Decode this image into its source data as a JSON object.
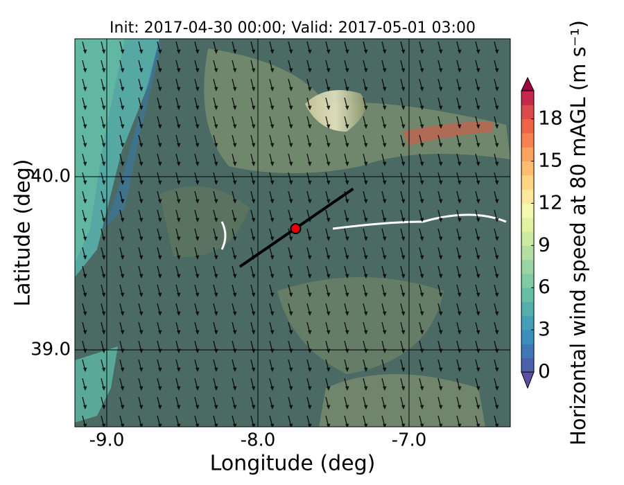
{
  "chart_data": {
    "type": "map",
    "title": "Init: 2017-04-30 00:00; Valid: 2017-05-01 03:00",
    "x_label": "Longitude (deg)",
    "y_label": "Latitude (deg)",
    "xlim": [
      -9.211,
      -6.33
    ],
    "ylim": [
      38.556,
      40.796
    ],
    "xticks": [
      {
        "value": -9,
        "label": "-9.0"
      },
      {
        "value": -8,
        "label": "-8.0"
      },
      {
        "value": -7,
        "label": "-7.0"
      }
    ],
    "yticks": [
      {
        "value": 39,
        "label": "39.0"
      },
      {
        "value": 40,
        "label": "40.0"
      }
    ],
    "grid": true,
    "transect": {
      "lon": [
        -8.12,
        -7.37
      ],
      "lat": [
        39.48,
        39.93
      ],
      "color": "#000000"
    },
    "site": {
      "lon": -7.75,
      "lat": 39.7,
      "color": "#e8000b"
    },
    "colorbar": {
      "label": "Horizontal wind speed at 80 mAGL (m s⁻¹)",
      "clim": [
        0,
        20
      ],
      "ticks": [
        0,
        3,
        6,
        9,
        12,
        15,
        18
      ],
      "colors": [
        "#4a60ab",
        "#3f78b4",
        "#3a8fbb",
        "#449fb7",
        "#54aead",
        "#66bfa5",
        "#7fcba4",
        "#99d5a4",
        "#b3e0a2",
        "#cceaa0",
        "#e3f2a0",
        "#f4f9b0",
        "#fee89a",
        "#fed683",
        "#fdbe6f",
        "#fba45e",
        "#f6834f",
        "#ed6445",
        "#dc4b4b",
        "#c2294a"
      ],
      "under_color": "#5e4fa2",
      "over_color": "#9e0142"
    }
  }
}
